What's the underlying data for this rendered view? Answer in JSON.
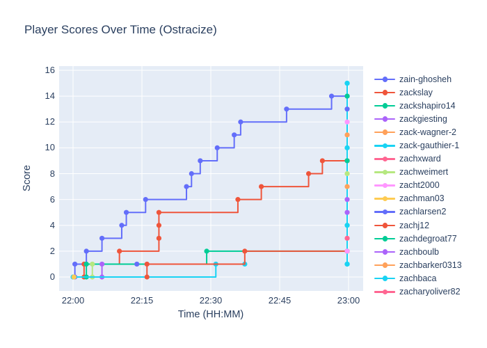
{
  "title": "Player Scores Over Time (Ostracize)",
  "axes": {
    "x_label": "Time (HH:MM)",
    "y_label": "Score",
    "x_ticks": [
      "22:00",
      "22:15",
      "22:30",
      "22:45",
      "23:00"
    ],
    "x_tick_minutes": [
      0,
      15,
      30,
      45,
      60
    ],
    "y_ticks": [
      "0",
      "2",
      "4",
      "6",
      "8",
      "10",
      "12",
      "14",
      "16"
    ],
    "y_tick_values": [
      0,
      2,
      4,
      6,
      8,
      10,
      12,
      14,
      16
    ]
  },
  "colors": {
    "plot_background": "#E5ECF6",
    "gridline": "#FFFFFF",
    "text": "#2A3F5F",
    "blue": "#636EFA",
    "red": "#EF553B",
    "green": "#00CC96",
    "purple": "#AB63FA",
    "orange": "#FFA15A",
    "cyan": "#19D3F3",
    "pinkred": "#FF6692",
    "lightgreen": "#B6E880",
    "pink": "#FF97FF",
    "yellow": "#FECB52"
  },
  "legend": {
    "items": [
      {
        "label": "zain-ghosheh",
        "color": "#636EFA"
      },
      {
        "label": "zackslay",
        "color": "#EF553B"
      },
      {
        "label": "zackshapiro14",
        "color": "#00CC96"
      },
      {
        "label": "zackgiesting",
        "color": "#AB63FA"
      },
      {
        "label": "zack-wagner-2",
        "color": "#FFA15A"
      },
      {
        "label": "zack-gauthier-1",
        "color": "#19D3F3"
      },
      {
        "label": "zachxward",
        "color": "#FF6692"
      },
      {
        "label": "zachweimert",
        "color": "#B6E880"
      },
      {
        "label": "zacht2000",
        "color": "#FF97FF"
      },
      {
        "label": "zachman03",
        "color": "#FECB52"
      },
      {
        "label": "zachlarsen2",
        "color": "#636EFA"
      },
      {
        "label": "zachj12",
        "color": "#EF553B"
      },
      {
        "label": "zachdegroat77",
        "color": "#00CC96"
      },
      {
        "label": "zachboulb",
        "color": "#AB63FA"
      },
      {
        "label": "zachbarker0313",
        "color": "#FFA15A"
      },
      {
        "label": "zachbaca",
        "color": "#19D3F3"
      },
      {
        "label": "zacharyoliver82",
        "color": "#FF6692"
      }
    ]
  },
  "chart_data": {
    "type": "line",
    "line_shape": "hv",
    "title": "Player Scores Over Time (Ostracize)",
    "xlabel": "Time (HH:MM)",
    "ylabel": "Score",
    "x_unit": "minutes after 22:00",
    "xlim": [
      -3,
      63
    ],
    "ylim": [
      -1.1,
      16.3
    ],
    "grid": true,
    "legend_position": "right",
    "series": [
      {
        "name": "zain-ghosheh",
        "color": "#636EFA",
        "points": [
          [
            0.4,
            0
          ],
          [
            0.4,
            1
          ],
          [
            2.9,
            2
          ],
          [
            6.3,
            3
          ],
          [
            10.6,
            4
          ],
          [
            11.6,
            5
          ],
          [
            15.8,
            6
          ],
          [
            24.7,
            7
          ],
          [
            25.8,
            8
          ],
          [
            27.7,
            9
          ],
          [
            31.4,
            10
          ],
          [
            35.1,
            11
          ],
          [
            36.5,
            12
          ],
          [
            46.5,
            13
          ],
          [
            56.3,
            14
          ],
          [
            59.7,
            14
          ]
        ]
      },
      {
        "name": "zackslay",
        "color": "#EF553B",
        "points": [
          [
            2.4,
            0
          ],
          [
            2.4,
            1
          ],
          [
            10.1,
            2
          ],
          [
            18.7,
            3
          ],
          [
            18.7,
            4
          ],
          [
            18.7,
            5
          ],
          [
            35.9,
            6
          ],
          [
            41,
            7
          ],
          [
            51.3,
            8
          ],
          [
            54.3,
            9
          ],
          [
            59.7,
            9
          ]
        ]
      },
      {
        "name": "zackshapiro14",
        "color": "#00CC96",
        "points": [
          [
            2.9,
            0
          ],
          [
            2.9,
            1
          ],
          [
            29.1,
            2
          ],
          [
            59.7,
            2
          ]
        ]
      },
      {
        "name": "zackgiesting",
        "color": "#AB63FA",
        "points": [
          [
            6.3,
            0
          ],
          [
            6.3,
            1
          ]
        ]
      },
      {
        "name": "zachweimert",
        "color": "#B6E880",
        "points": [
          [
            4.2,
            0
          ],
          [
            4.2,
            1
          ]
        ]
      },
      {
        "name": "zack-gauthier-1",
        "color": "#19D3F3",
        "points": [
          [
            0,
            0
          ],
          [
            31.1,
            1
          ],
          [
            37.4,
            1
          ]
        ]
      },
      {
        "name": "zachman03",
        "color": "#FECB52",
        "points": [
          [
            0.2,
            0
          ]
        ]
      },
      {
        "name": "zachlarsen2",
        "color": "#636EFA",
        "points": [
          [
            13.9,
            1
          ]
        ]
      },
      {
        "name": "zachj12",
        "color": "#EF553B",
        "points": [
          [
            16.1,
            0
          ],
          [
            16.1,
            1
          ],
          [
            37.4,
            2
          ],
          [
            59.7,
            2
          ]
        ]
      },
      {
        "name": "zachbaca",
        "color": "#19D3F3",
        "points": [
          [
            59.7,
            1
          ],
          [
            59.7,
            4
          ],
          [
            59.7,
            10
          ],
          [
            59.7,
            15
          ]
        ]
      }
    ],
    "final_markers": {
      "x": 59.7,
      "note": "stacked end-of-game markers at 23:00",
      "values": [
        [
          15,
          "#19D3F3"
        ],
        [
          14,
          "#00CC96"
        ],
        [
          13,
          "#636EFA"
        ],
        [
          12,
          "#FF97FF"
        ],
        [
          11,
          "#FFA15A"
        ],
        [
          10,
          "#19D3F3"
        ],
        [
          9,
          "#00CC96"
        ],
        [
          8,
          "#B6E880"
        ],
        [
          7,
          "#FFA15A"
        ],
        [
          6,
          "#AB63FA"
        ],
        [
          5,
          "#AB63FA"
        ],
        [
          4,
          "#19D3F3"
        ],
        [
          3,
          "#FF6692"
        ],
        [
          2,
          "#FF97FF"
        ],
        [
          1,
          "#19D3F3"
        ]
      ]
    }
  }
}
